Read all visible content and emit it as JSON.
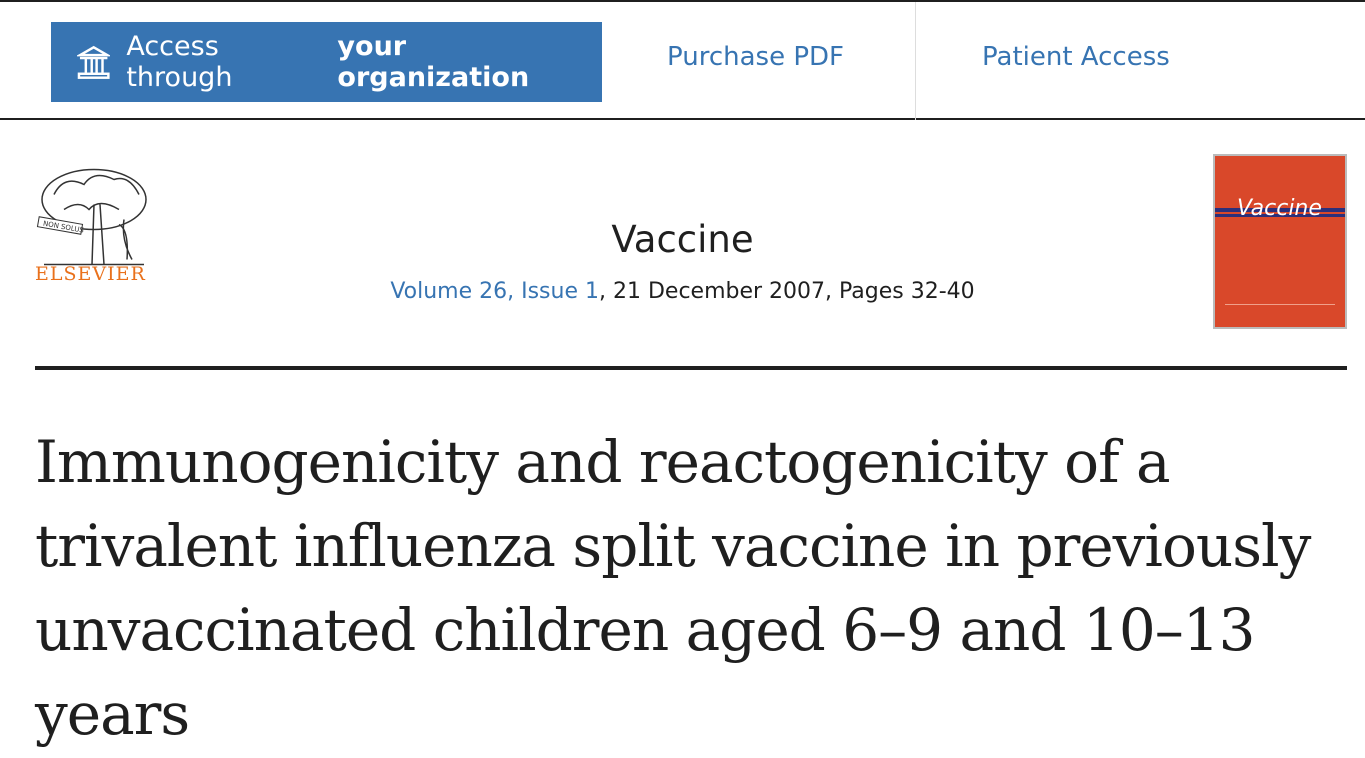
{
  "topbar": {
    "access_label_prefix": "Access through",
    "access_label_bold": "your organization",
    "purchase_pdf": "Purchase PDF",
    "patient_access": "Patient Access",
    "access_icon": "institution-icon"
  },
  "publisher": {
    "name": "ELSEVIER",
    "logo_motto": "NON SOLUS"
  },
  "journal": {
    "title": "Vaccine",
    "volume_issue": "Volume 26, Issue 1",
    "date_pages": ", 21 December 2007, Pages 32-40",
    "cover_title": "Vaccine"
  },
  "article": {
    "title": "Immunogenicity and reactogenicity of a trivalent influenza split vaccine in previously unvaccinated children aged 6–9 and 10–13 years"
  },
  "colors": {
    "accent": "#3774b2",
    "elsevier_orange": "#e9711c",
    "cover": "#d9482a"
  }
}
